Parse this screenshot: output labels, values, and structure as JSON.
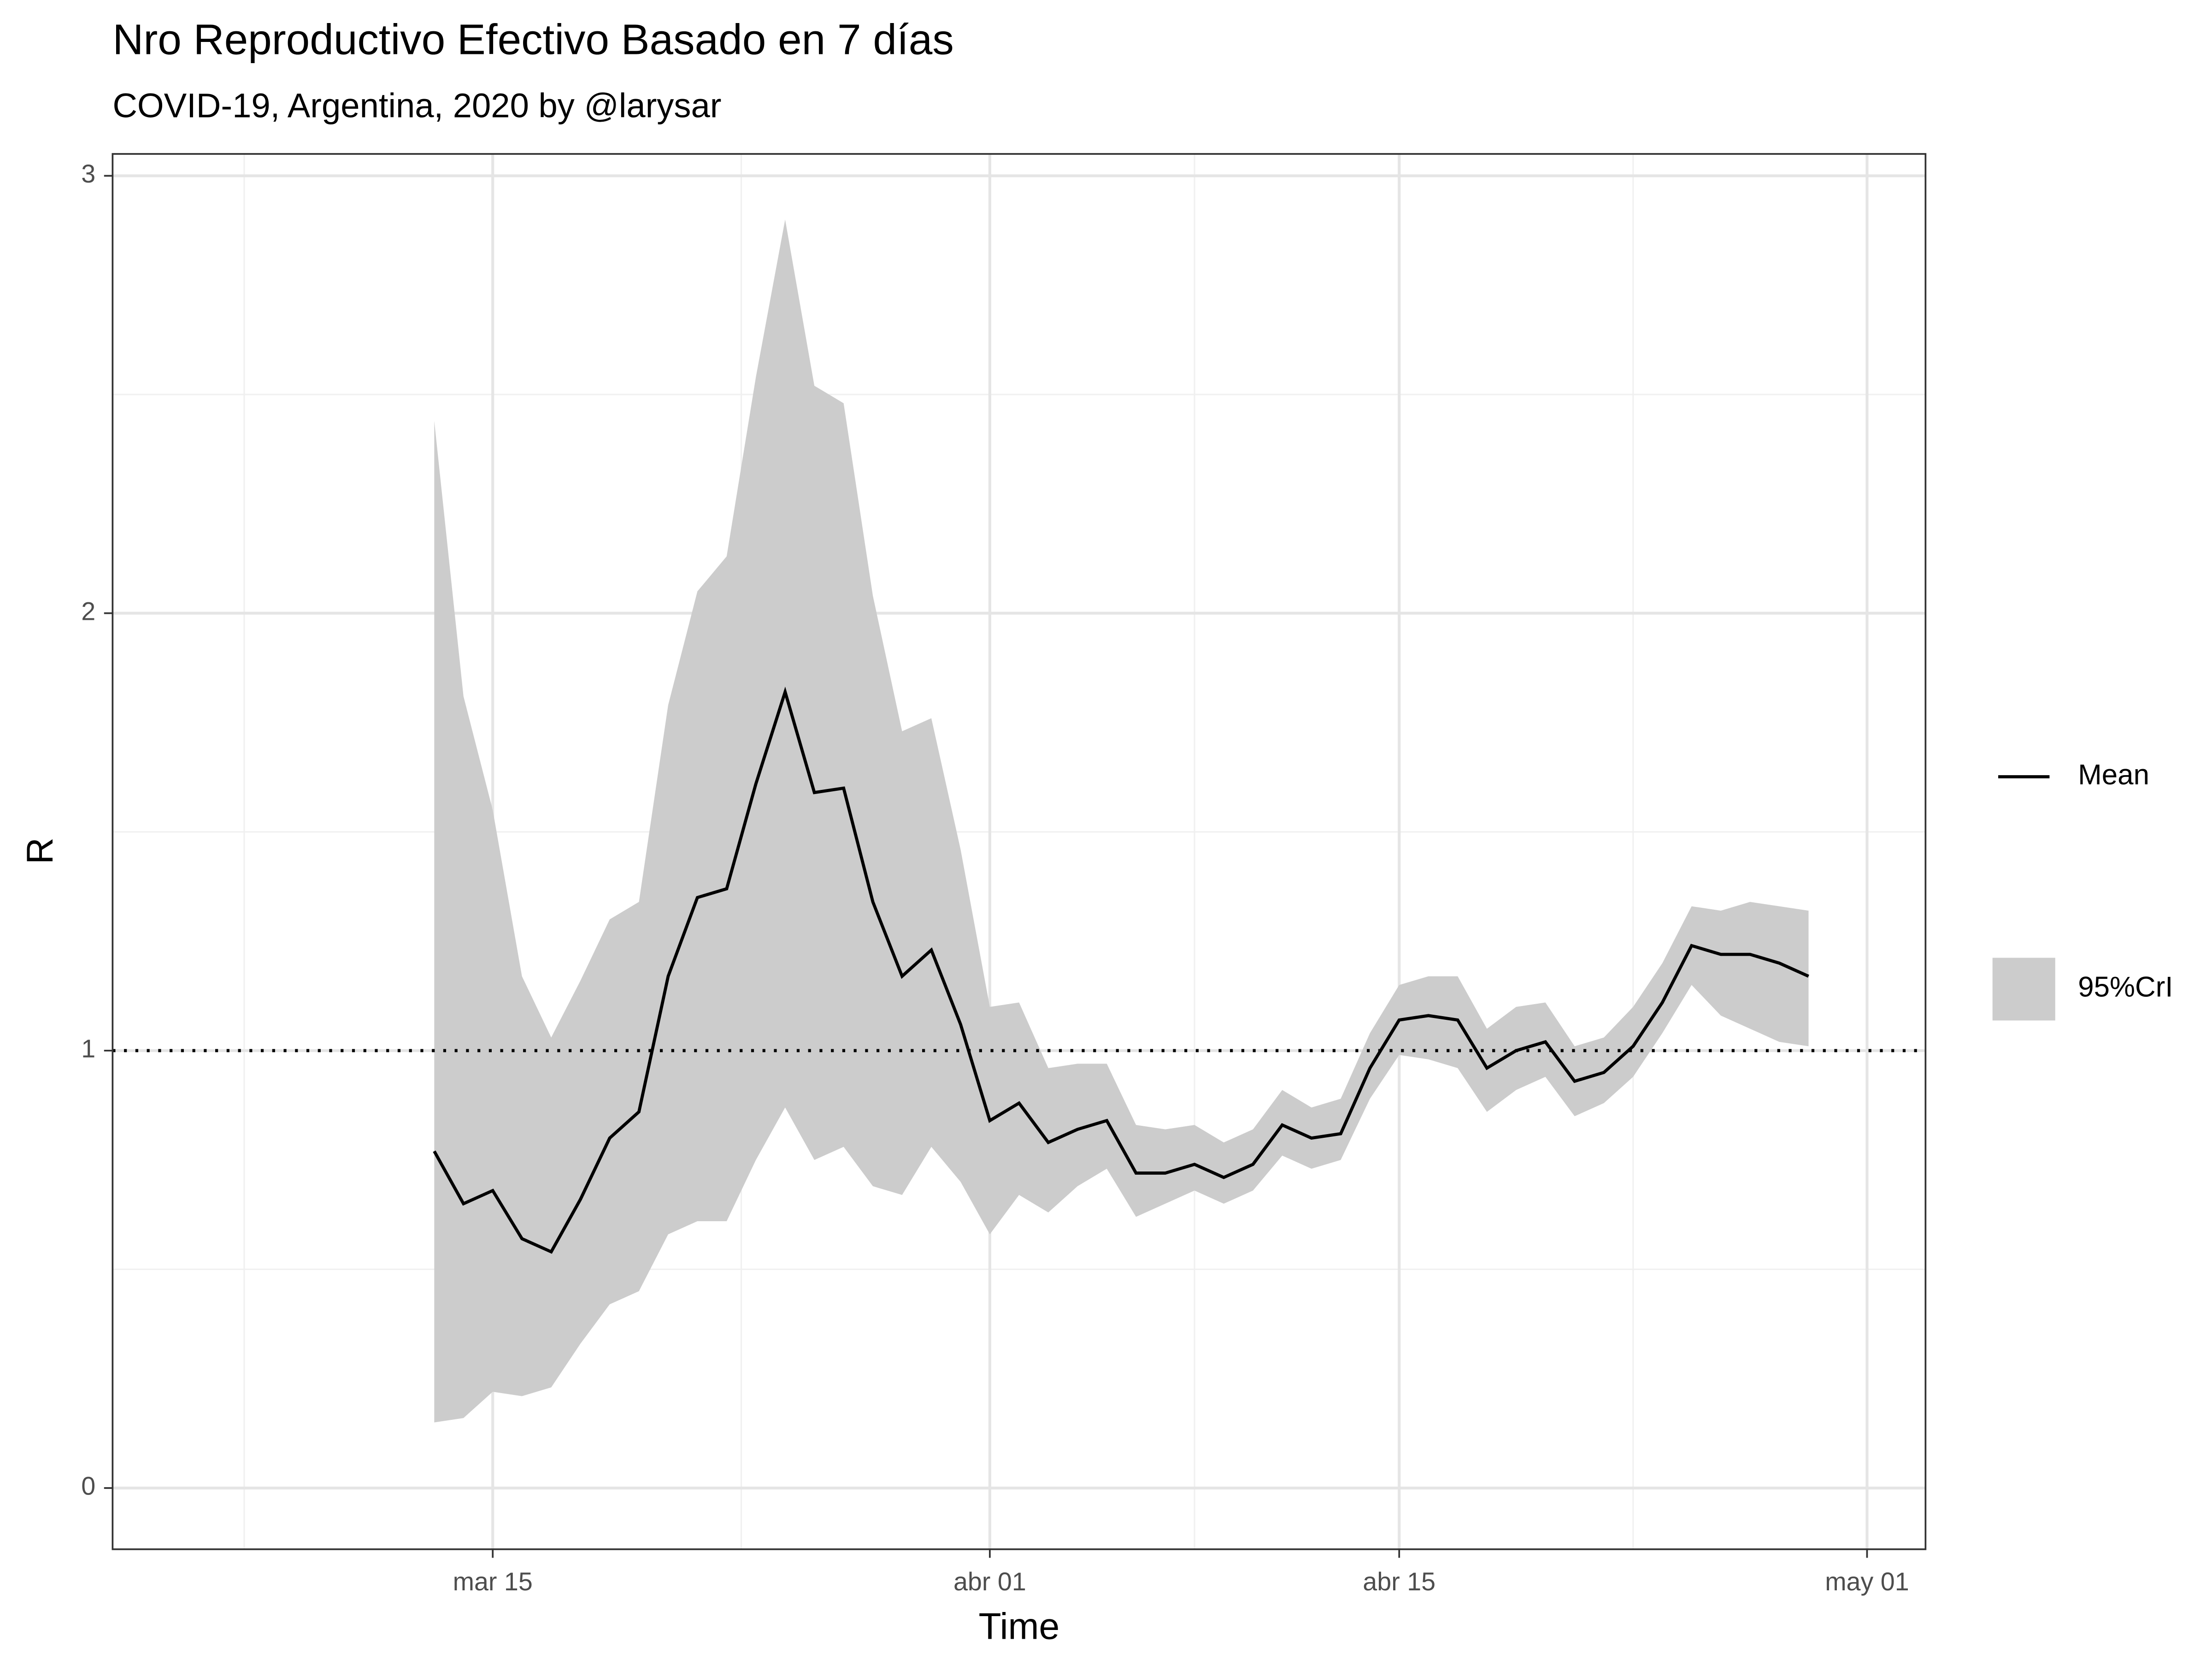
{
  "chart_data": {
    "type": "line",
    "title": "Nro Reproductivo Efectivo Basado en 7 días",
    "subtitle": "COVID-19, Argentina, 2020 by @larysar",
    "x_label": "Time",
    "y_label": "R",
    "x": [
      "03-13",
      "03-14",
      "03-15",
      "03-16",
      "03-17",
      "03-18",
      "03-19",
      "03-20",
      "03-21",
      "03-22",
      "03-23",
      "03-24",
      "03-25",
      "03-26",
      "03-27",
      "03-28",
      "03-29",
      "03-30",
      "03-31",
      "04-01",
      "04-02",
      "04-03",
      "04-04",
      "04-05",
      "04-06",
      "04-07",
      "04-08",
      "04-09",
      "04-10",
      "04-11",
      "04-12",
      "04-13",
      "04-14",
      "04-15",
      "04-16",
      "04-17",
      "04-18",
      "04-19",
      "04-20",
      "04-21",
      "04-22",
      "04-23",
      "04-24",
      "04-25",
      "04-26",
      "04-27",
      "04-28",
      "04-29"
    ],
    "series": [
      {
        "name": "Mean",
        "color": "#000000",
        "values": [
          0.77,
          0.65,
          0.68,
          0.57,
          0.54,
          0.66,
          0.8,
          0.86,
          1.17,
          1.35,
          1.37,
          1.61,
          1.82,
          1.59,
          1.6,
          1.34,
          1.17,
          1.23,
          1.06,
          0.84,
          0.88,
          0.79,
          0.82,
          0.84,
          0.72,
          0.72,
          0.74,
          0.71,
          0.74,
          0.83,
          0.8,
          0.81,
          0.96,
          1.07,
          1.08,
          1.07,
          0.96,
          1.0,
          1.02,
          0.93,
          0.95,
          1.01,
          1.11,
          1.24,
          1.22,
          1.22,
          1.2,
          1.17
        ]
      },
      {
        "name": "95%CrI",
        "color": "#cccccc",
        "upper": [
          2.44,
          1.81,
          1.55,
          1.17,
          1.03,
          1.16,
          1.3,
          1.34,
          1.79,
          2.05,
          2.13,
          2.54,
          2.9,
          2.52,
          2.48,
          2.04,
          1.73,
          1.76,
          1.46,
          1.1,
          1.11,
          0.96,
          0.97,
          0.97,
          0.83,
          0.82,
          0.83,
          0.79,
          0.82,
          0.91,
          0.87,
          0.89,
          1.04,
          1.15,
          1.17,
          1.17,
          1.05,
          1.1,
          1.11,
          1.01,
          1.03,
          1.1,
          1.2,
          1.33,
          1.32,
          1.34,
          1.33,
          1.32
        ],
        "lower": [
          0.15,
          0.16,
          0.22,
          0.21,
          0.23,
          0.33,
          0.42,
          0.45,
          0.58,
          0.61,
          0.61,
          0.75,
          0.87,
          0.75,
          0.78,
          0.69,
          0.67,
          0.78,
          0.7,
          0.58,
          0.67,
          0.63,
          0.69,
          0.73,
          0.62,
          0.65,
          0.68,
          0.65,
          0.68,
          0.76,
          0.73,
          0.75,
          0.89,
          0.99,
          0.98,
          0.96,
          0.86,
          0.91,
          0.94,
          0.85,
          0.88,
          0.94,
          1.04,
          1.15,
          1.08,
          1.05,
          1.02,
          1.01
        ]
      }
    ],
    "hline": 1,
    "xlim": [
      "03-02",
      "05-03"
    ],
    "xticks": [
      {
        "value": "03-15",
        "label": "mar 15"
      },
      {
        "value": "04-01",
        "label": "abr 01"
      },
      {
        "value": "04-15",
        "label": "abr 15"
      },
      {
        "value": "05-01",
        "label": "may 01"
      }
    ],
    "ylim": [
      -0.14,
      3.05
    ],
    "yticks": [
      0,
      1,
      2,
      3
    ],
    "grid": true
  }
}
